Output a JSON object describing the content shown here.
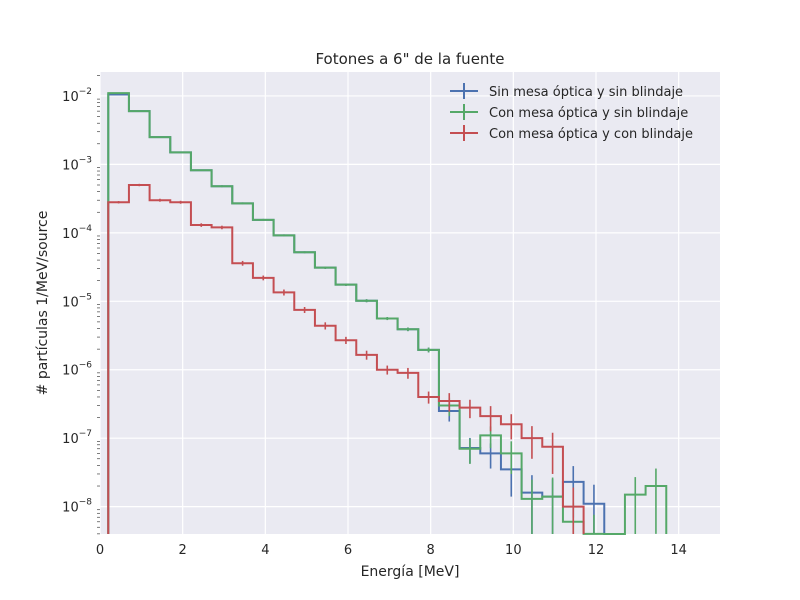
{
  "chart_data": {
    "type": "line",
    "subtype": "step-histogram-with-errorbars",
    "title": "Fotones a 6\" de la fuente",
    "xlabel": "Energía [MeV]",
    "ylabel": "# partículas 1/MeV/source",
    "xlim": [
      0,
      15
    ],
    "ylim_log10": [
      -8.4,
      -1.65
    ],
    "yscale": "log",
    "xticks": [
      0,
      2,
      4,
      6,
      8,
      10,
      12,
      14
    ],
    "xtick_labels": [
      "0",
      "2",
      "4",
      "6",
      "8",
      "10",
      "12",
      "14"
    ],
    "yticks_exp": [
      -8,
      -7,
      -6,
      -5,
      -4,
      -3,
      -2
    ],
    "ytick_labels": [
      {
        "base": "10",
        "exp": "−8"
      },
      {
        "base": "10",
        "exp": "−7"
      },
      {
        "base": "10",
        "exp": "−6"
      },
      {
        "base": "10",
        "exp": "−5"
      },
      {
        "base": "10",
        "exp": "−4"
      },
      {
        "base": "10",
        "exp": "−3"
      },
      {
        "base": "10",
        "exp": "−2"
      }
    ],
    "grid": true,
    "legend_position": "top-right",
    "bin_edges": [
      0.2,
      0.7,
      1.2,
      1.7,
      2.2,
      2.7,
      3.2,
      3.7,
      4.2,
      4.7,
      5.2,
      5.7,
      6.2,
      6.7,
      7.2,
      7.7,
      8.2,
      8.7,
      9.2,
      9.7,
      10.2,
      10.7,
      11.2,
      11.7,
      12.2,
      12.7,
      13.2,
      13.7,
      14.2
    ],
    "series": [
      {
        "name": "Sin mesa óptica y sin blindaje",
        "color": "#4c72b0",
        "values": [
          0.0105,
          0.006,
          0.0025,
          0.0015,
          0.00082,
          0.00048,
          0.00027,
          0.000155,
          9.2e-05,
          5.2e-05,
          3.1e-05,
          1.75e-05,
          1.02e-05,
          5.6e-06,
          3.9e-06,
          1.95e-06,
          2.5e-07,
          7.2e-08,
          6e-08,
          3.5e-08,
          1.6e-08,
          1.4e-08,
          2.3e-08,
          1.1e-08,
          null,
          null,
          null,
          null
        ],
        "errors_rel": [
          0.02,
          0.02,
          0.02,
          0.02,
          0.02,
          0.03,
          0.03,
          0.03,
          0.03,
          0.03,
          0.04,
          0.04,
          0.05,
          0.05,
          0.06,
          0.08,
          0.3,
          0.4,
          0.4,
          0.6,
          0.8,
          0.8,
          0.7,
          0.9,
          null,
          null,
          null,
          null
        ]
      },
      {
        "name": "Con mesa óptica y sin blindaje",
        "color": "#55a868",
        "values": [
          0.011,
          0.006,
          0.0025,
          0.0015,
          0.00082,
          0.00048,
          0.00027,
          0.000155,
          9.2e-05,
          5.2e-05,
          3.1e-05,
          1.75e-05,
          1.02e-05,
          5.6e-06,
          3.9e-06,
          1.95e-06,
          3e-07,
          7e-08,
          1.1e-07,
          6e-08,
          1.3e-08,
          1.4e-08,
          6e-09,
          4e-09,
          2e-09,
          1.5e-08,
          2e-08,
          null
        ],
        "errors_rel": [
          0.02,
          0.02,
          0.02,
          0.02,
          0.02,
          0.03,
          0.03,
          0.03,
          0.03,
          0.03,
          0.04,
          0.04,
          0.05,
          0.05,
          0.06,
          0.08,
          0.3,
          0.4,
          0.35,
          0.5,
          0.9,
          0.9,
          0.9,
          0.9,
          0.9,
          0.8,
          0.8,
          null
        ]
      },
      {
        "name": "Con mesa óptica y con blindaje",
        "color": "#c44e52",
        "values": [
          0.00028,
          0.0005,
          0.0003,
          0.00028,
          0.00013,
          0.00012,
          3.6e-05,
          2.2e-05,
          1.35e-05,
          7.5e-06,
          4.4e-06,
          2.7e-06,
          1.65e-06,
          1e-06,
          9e-07,
          4e-07,
          3.5e-07,
          2.8e-07,
          2.1e-07,
          1.6e-07,
          1e-07,
          7.5e-08,
          1e-08,
          null,
          null,
          null,
          null,
          null
        ],
        "errors_rel": [
          0.04,
          0.04,
          0.05,
          0.05,
          0.06,
          0.06,
          0.08,
          0.08,
          0.1,
          0.1,
          0.12,
          0.12,
          0.15,
          0.15,
          0.18,
          0.2,
          0.3,
          0.3,
          0.4,
          0.4,
          0.5,
          0.6,
          0.9,
          null,
          null,
          null,
          null,
          null
        ]
      }
    ]
  }
}
